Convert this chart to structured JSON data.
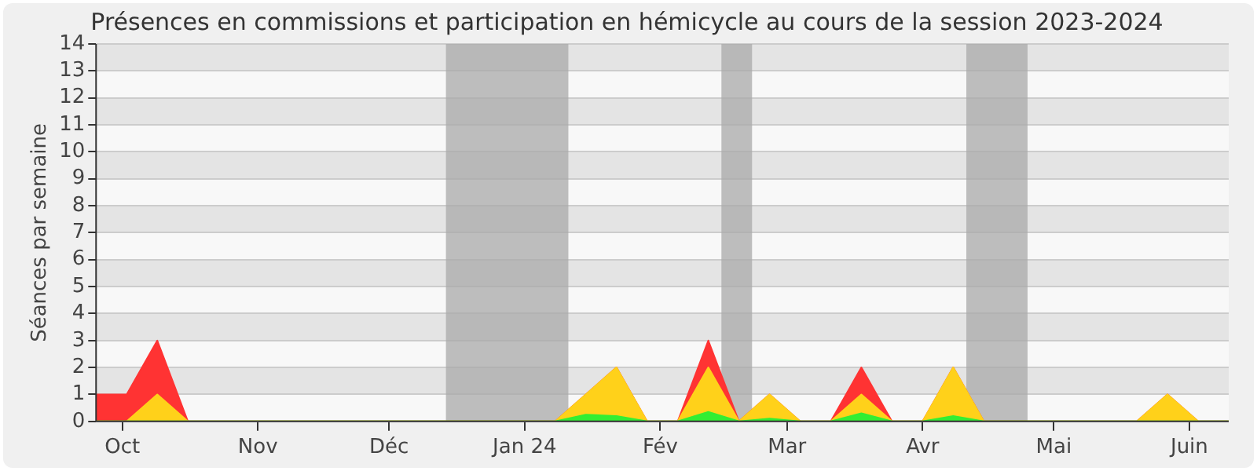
{
  "chart_data": {
    "type": "area",
    "title": "Présences en commissions et participation en hémicycle au cours de la session 2023-2024",
    "ylabel": "Séances par semaine",
    "x": [
      "2023-09-25",
      "2023-10-02",
      "2023-10-09",
      "2023-10-16",
      "2023-10-23",
      "2023-10-30",
      "2023-11-06",
      "2023-11-13",
      "2023-11-20",
      "2023-11-27",
      "2023-12-04",
      "2023-12-11",
      "2023-12-18",
      "2023-12-25",
      "2024-01-01",
      "2024-01-08",
      "2024-01-15",
      "2024-01-22",
      "2024-01-29",
      "2024-02-05",
      "2024-02-12",
      "2024-02-19",
      "2024-02-26",
      "2024-03-04",
      "2024-03-11",
      "2024-03-18",
      "2024-03-25",
      "2024-04-01",
      "2024-04-08",
      "2024-04-15",
      "2024-04-22",
      "2024-04-29",
      "2024-05-06",
      "2024-05-13",
      "2024-05-20",
      "2024-05-27",
      "2024-06-03",
      "2024-06-10"
    ],
    "series": [
      {
        "color": "#ff3333",
        "values": [
          1,
          1,
          3,
          0,
          0,
          0,
          0,
          0,
          0,
          0,
          0,
          0,
          0,
          0,
          0,
          0,
          1,
          2,
          0,
          0,
          3,
          0,
          1,
          0,
          0,
          2,
          0,
          0,
          2,
          0,
          0,
          0,
          0,
          0,
          0,
          1,
          0,
          0
        ]
      },
      {
        "color": "#ffd11a",
        "values": [
          0,
          0,
          1,
          0,
          0,
          0,
          0,
          0,
          0,
          0,
          0,
          0,
          0,
          0,
          0,
          0,
          1,
          2,
          0,
          0,
          2,
          0,
          1,
          0,
          0,
          1,
          0,
          0,
          2,
          0,
          0,
          0,
          0,
          0,
          0,
          1,
          0,
          0
        ]
      },
      {
        "color": "#33ee33",
        "values": [
          0,
          0,
          0,
          0,
          0,
          0,
          0,
          0,
          0,
          0,
          0,
          0,
          0,
          0,
          0,
          0,
          0.25,
          0.2,
          0,
          0,
          0.35,
          0,
          0.1,
          0,
          0,
          0.3,
          0,
          0,
          0.2,
          0,
          0,
          0,
          0,
          0,
          0,
          0,
          0,
          0
        ]
      }
    ],
    "xlim": [
      "2023-09-25",
      "2024-06-10"
    ],
    "xticks": [
      {
        "value": "2023-10-01",
        "label": "Oct"
      },
      {
        "value": "2023-11-01",
        "label": "Nov"
      },
      {
        "value": "2023-12-01",
        "label": "Déc"
      },
      {
        "value": "2024-01-01",
        "label": "Jan 24"
      },
      {
        "value": "2024-02-01",
        "label": "Fév"
      },
      {
        "value": "2024-03-01",
        "label": "Mar"
      },
      {
        "value": "2024-04-01",
        "label": "Avr"
      },
      {
        "value": "2024-05-01",
        "label": "Mai"
      },
      {
        "value": "2024-06-01",
        "label": "Juin"
      }
    ],
    "ylim": [
      0,
      14
    ],
    "yticks": [
      0,
      1,
      2,
      3,
      4,
      5,
      6,
      7,
      8,
      9,
      10,
      11,
      12,
      13,
      14
    ],
    "bands": [
      {
        "axis": "x",
        "from": "2023-12-14",
        "to": "2024-01-11",
        "color": "#aaaaaa"
      },
      {
        "axis": "x",
        "from": "2024-02-15",
        "to": "2024-02-22",
        "color": "#aaaaaa"
      },
      {
        "axis": "x",
        "from": "2024-04-11",
        "to": "2024-04-25",
        "color": "#aaaaaa"
      }
    ],
    "grid": "y",
    "legend": false
  }
}
